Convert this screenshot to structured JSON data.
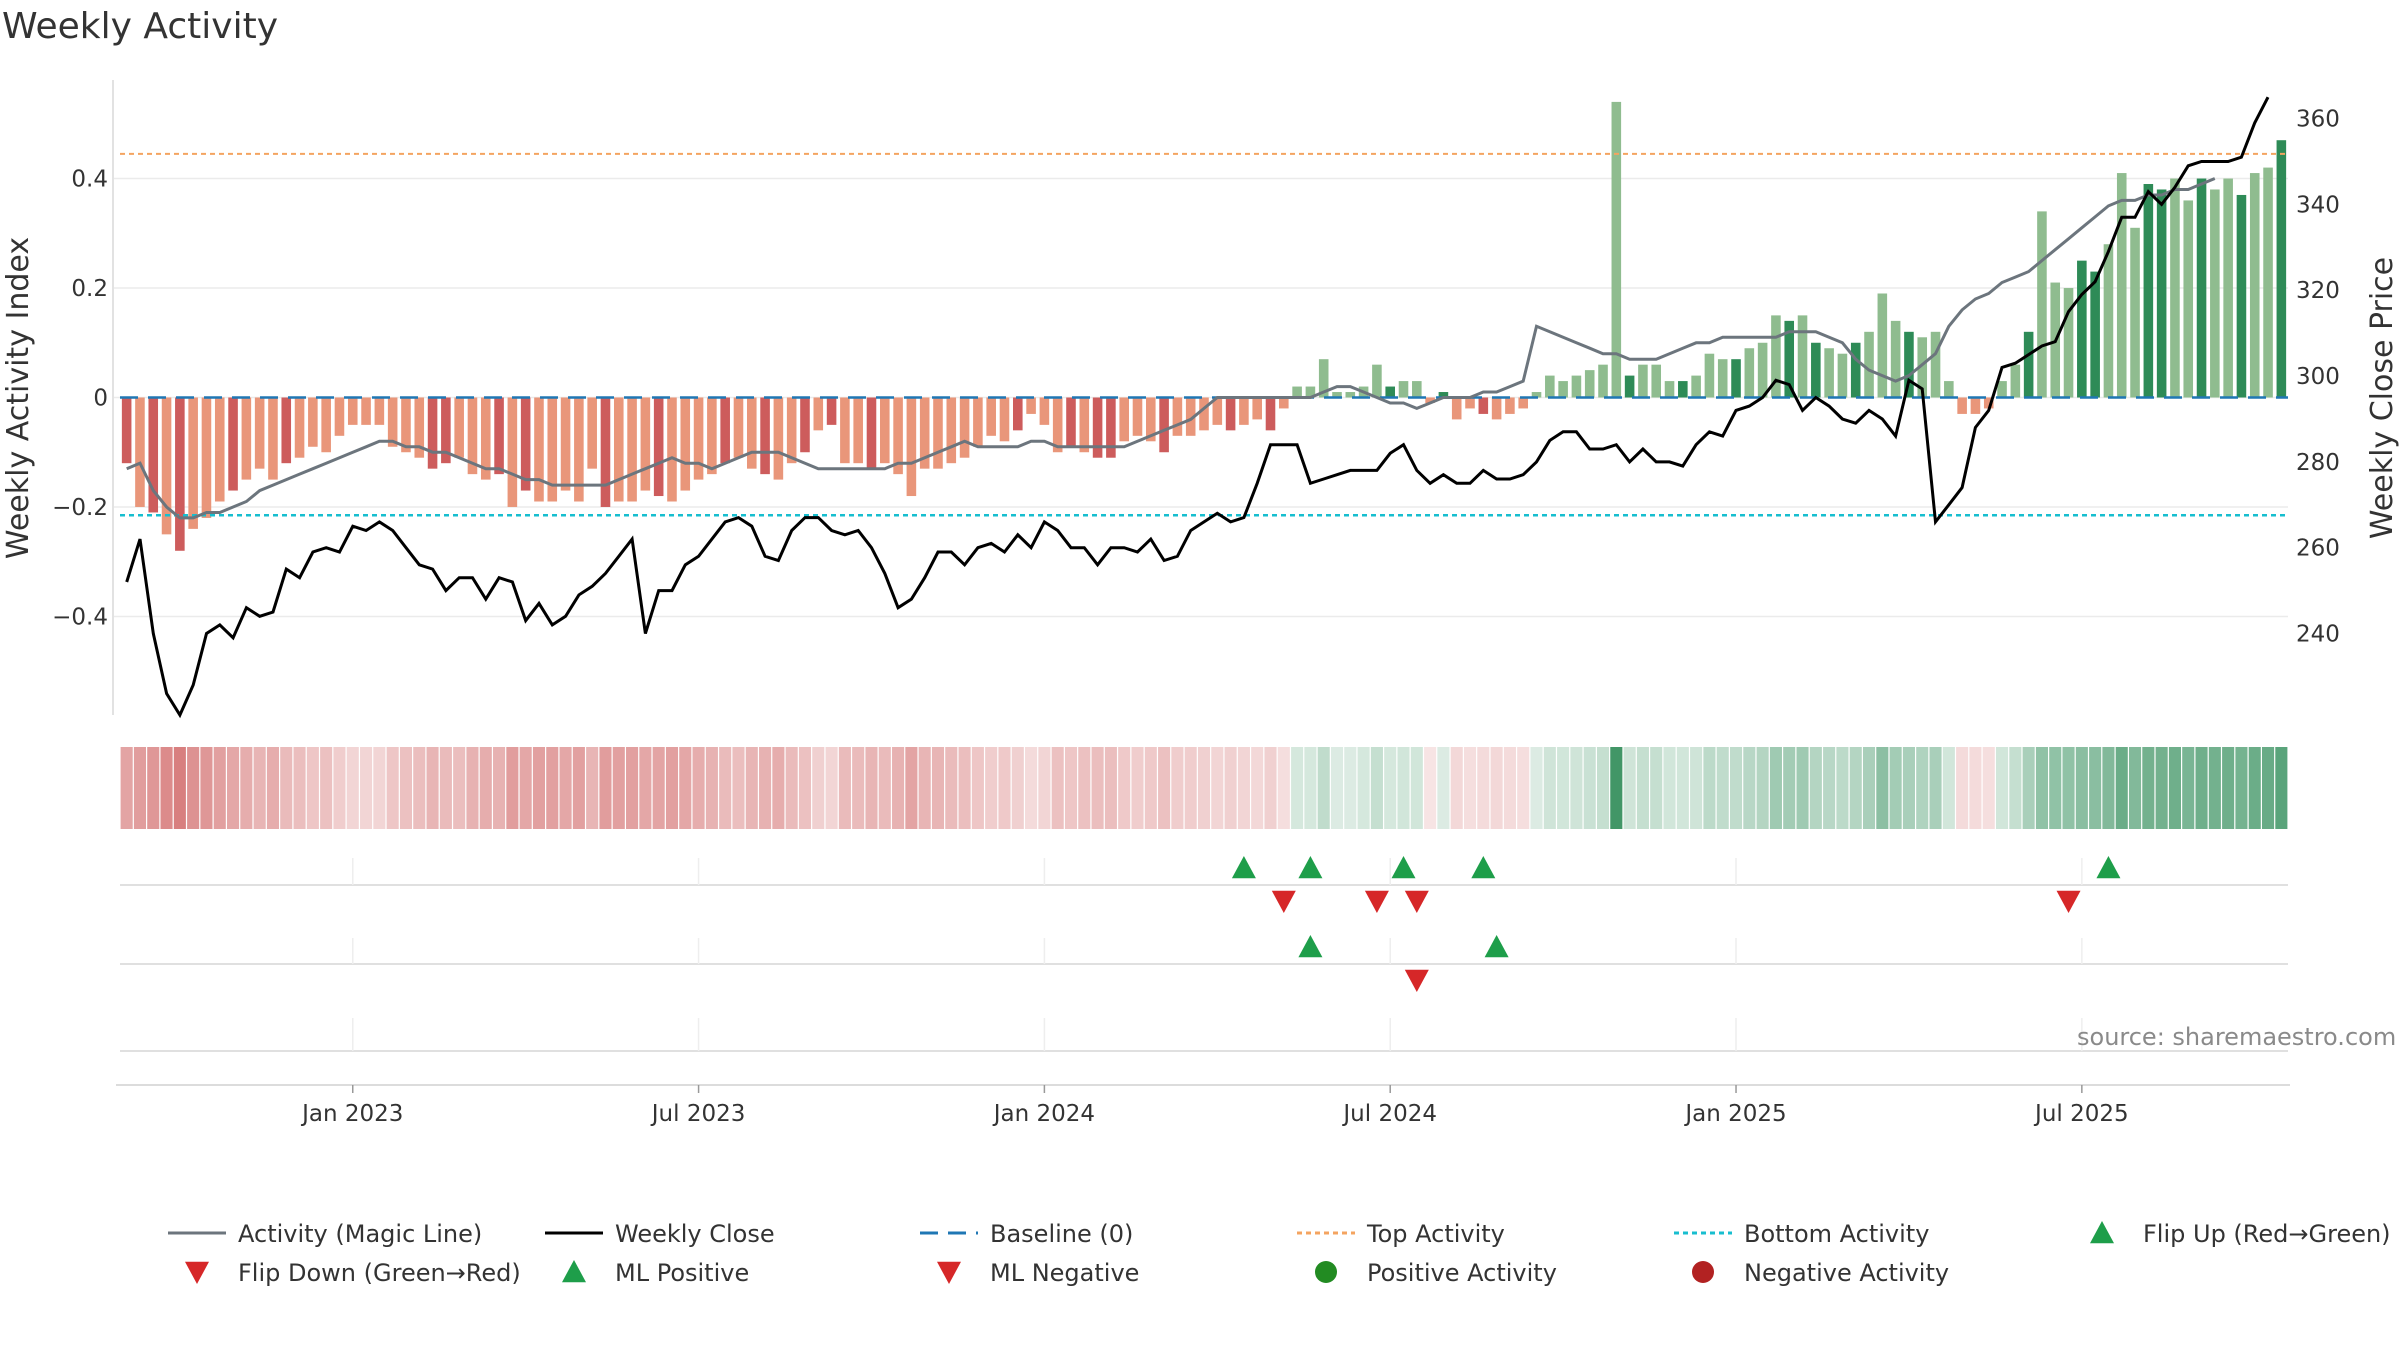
{
  "chart_data": {
    "type": "bar",
    "title": "Weekly Activity",
    "source": "source: sharemaestro.com",
    "y_left_label": "Weekly Activity Index",
    "y_right_label": "Weekly Close Price",
    "y_left_ticks": [
      {
        "v": 0.4,
        "label": "0.4"
      },
      {
        "v": 0.2,
        "label": "0.2"
      },
      {
        "v": 0,
        "label": "0"
      },
      {
        "v": -0.2,
        "label": "−0.2"
      },
      {
        "v": -0.4,
        "label": "−0.4"
      }
    ],
    "y_right_ticks": [
      360,
      340,
      320,
      300,
      280,
      260,
      240
    ],
    "y_left_range": [
      -0.58,
      0.58
    ],
    "y_right_range": [
      221,
      369
    ],
    "x_ticks": [
      {
        "w": 17,
        "label": "Jan 2023"
      },
      {
        "w": 43,
        "label": "Jul 2023"
      },
      {
        "w": 69,
        "label": "Jan 2024"
      },
      {
        "w": 95,
        "label": "Jul 2024"
      },
      {
        "w": 121,
        "label": "Jan 2025"
      },
      {
        "w": 147,
        "label": "Jul 2025"
      }
    ],
    "top_activity": 0.445,
    "bottom_activity": -0.215,
    "baseline": 0,
    "colors": {
      "strong_neg": "#cd5c5c",
      "weak_neg": "#e9967a",
      "strong_pos": "#2e8b57",
      "weak_pos": "#8fbc8f",
      "magic_line": "#6c757d",
      "close_line": "#000000",
      "baseline": "#1f77b4",
      "top_line": "#f4a460",
      "bottom_line": "#17becf",
      "marker_up": "#1e9e4a",
      "marker_down": "#d62728",
      "pos_dot": "#228b22",
      "neg_dot": "#b22222"
    },
    "weekly_activity": [
      -0.12,
      -0.2,
      -0.21,
      -0.25,
      -0.28,
      -0.24,
      -0.22,
      -0.19,
      -0.17,
      -0.15,
      -0.13,
      -0.15,
      -0.12,
      -0.11,
      -0.09,
      -0.1,
      -0.07,
      -0.05,
      -0.05,
      -0.05,
      -0.09,
      -0.1,
      -0.11,
      -0.13,
      -0.12,
      -0.11,
      -0.14,
      -0.15,
      -0.14,
      -0.2,
      -0.17,
      -0.19,
      -0.19,
      -0.17,
      -0.19,
      -0.13,
      -0.2,
      -0.19,
      -0.19,
      -0.17,
      -0.18,
      -0.19,
      -0.17,
      -0.15,
      -0.14,
      -0.12,
      -0.11,
      -0.13,
      -0.14,
      -0.15,
      -0.12,
      -0.1,
      -0.06,
      -0.05,
      -0.12,
      -0.12,
      -0.13,
      -0.12,
      -0.14,
      -0.18,
      -0.13,
      -0.13,
      -0.12,
      -0.11,
      -0.09,
      -0.07,
      -0.08,
      -0.06,
      -0.03,
      -0.05,
      -0.1,
      -0.09,
      -0.1,
      -0.11,
      -0.11,
      -0.08,
      -0.07,
      -0.08,
      -0.1,
      -0.07,
      -0.07,
      -0.06,
      -0.05,
      -0.06,
      -0.05,
      -0.04,
      -0.06,
      -0.02,
      0.02,
      0.02,
      0.07,
      0.01,
      0.01,
      0.02,
      0.06,
      0.02,
      0.03,
      0.03,
      -0.01,
      0.01,
      -0.04,
      -0.02,
      -0.03,
      -0.04,
      -0.03,
      -0.02,
      0.01,
      0.04,
      0.03,
      0.04,
      0.05,
      0.06,
      0.54,
      0.04,
      0.06,
      0.06,
      0.03,
      0.03,
      0.04,
      0.08,
      0.07,
      0.07,
      0.09,
      0.1,
      0.15,
      0.14,
      0.15,
      0.1,
      0.09,
      0.08,
      0.1,
      0.12,
      0.19,
      0.14,
      0.12,
      0.11,
      0.12,
      0.03,
      -0.03,
      -0.03,
      -0.02,
      0.03,
      0.06,
      0.12,
      0.34,
      0.21,
      0.2,
      0.25,
      0.23,
      0.28,
      0.41,
      0.31,
      0.39,
      0.38,
      0.4,
      0.36,
      0.4,
      0.38,
      0.4,
      0.37,
      0.41,
      0.42,
      0.47
    ],
    "strong_weeks": [
      0,
      2,
      4,
      8,
      12,
      23,
      24,
      28,
      30,
      36,
      40,
      45,
      48,
      51,
      53,
      56,
      67,
      71,
      73,
      74,
      78,
      83,
      86,
      95,
      99,
      102,
      113,
      117,
      121,
      125,
      127,
      130,
      134,
      143,
      147,
      148,
      152,
      153,
      156,
      159,
      162
    ],
    "magic_line": [
      -0.13,
      -0.12,
      -0.17,
      -0.2,
      -0.22,
      -0.22,
      -0.21,
      -0.21,
      -0.2,
      -0.19,
      -0.17,
      -0.16,
      -0.15,
      -0.14,
      -0.13,
      -0.12,
      -0.11,
      -0.1,
      -0.09,
      -0.08,
      -0.08,
      -0.09,
      -0.09,
      -0.1,
      -0.1,
      -0.11,
      -0.12,
      -0.13,
      -0.13,
      -0.14,
      -0.15,
      -0.15,
      -0.16,
      -0.16,
      -0.16,
      -0.16,
      -0.16,
      -0.15,
      -0.14,
      -0.13,
      -0.12,
      -0.11,
      -0.12,
      -0.12,
      -0.13,
      -0.12,
      -0.11,
      -0.1,
      -0.1,
      -0.1,
      -0.11,
      -0.12,
      -0.13,
      -0.13,
      -0.13,
      -0.13,
      -0.13,
      -0.13,
      -0.12,
      -0.12,
      -0.11,
      -0.1,
      -0.09,
      -0.08,
      -0.09,
      -0.09,
      -0.09,
      -0.09,
      -0.08,
      -0.08,
      -0.09,
      -0.09,
      -0.09,
      -0.09,
      -0.09,
      -0.09,
      -0.08,
      -0.07,
      -0.06,
      -0.05,
      -0.04,
      -0.02,
      0.0,
      0.0,
      0.0,
      0.0,
      0.0,
      0.0,
      0.0,
      0.0,
      0.01,
      0.02,
      0.02,
      0.01,
      0.0,
      -0.01,
      -0.01,
      -0.02,
      -0.01,
      0.0,
      0.0,
      0.0,
      0.01,
      0.01,
      0.02,
      0.03,
      0.13,
      0.12,
      0.11,
      0.1,
      0.09,
      0.08,
      0.08,
      0.07,
      0.07,
      0.07,
      0.08,
      0.09,
      0.1,
      0.1,
      0.11,
      0.11,
      0.11,
      0.11,
      0.11,
      0.12,
      0.12,
      0.12,
      0.11,
      0.1,
      0.07,
      0.05,
      0.04,
      0.03,
      0.04,
      0.06,
      0.08,
      0.13,
      0.16,
      0.18,
      0.19,
      0.21,
      0.22,
      0.23,
      0.25,
      0.27,
      0.29,
      0.31,
      0.33,
      0.35,
      0.36,
      0.36,
      0.37,
      0.37,
      0.38,
      0.38,
      0.39,
      0.4
    ],
    "weekly_close": [
      252,
      262,
      240,
      226,
      221,
      228,
      240,
      242,
      239,
      246,
      244,
      245,
      255,
      253,
      259,
      260,
      259,
      265,
      264,
      266,
      264,
      260,
      256,
      255,
      250,
      253,
      253,
      248,
      253,
      252,
      243,
      247,
      242,
      244,
      249,
      251,
      254,
      258,
      262,
      240,
      250,
      250,
      256,
      258,
      262,
      266,
      267,
      265,
      258,
      257,
      264,
      267,
      267,
      264,
      263,
      264,
      260,
      254,
      246,
      248,
      253,
      259,
      259,
      256,
      260,
      261,
      259,
      263,
      260,
      266,
      264,
      260,
      260,
      256,
      260,
      260,
      259,
      262,
      257,
      258,
      264,
      266,
      268,
      266,
      267,
      275,
      284,
      284,
      284,
      275,
      276,
      277,
      278,
      278,
      278,
      282,
      284,
      278,
      275,
      277,
      275,
      275,
      278,
      276,
      276,
      277,
      280,
      285,
      287,
      287,
      283,
      283,
      284,
      280,
      283,
      280,
      280,
      279,
      284,
      287,
      286,
      292,
      293,
      295,
      299,
      298,
      292,
      295,
      293,
      290,
      289,
      292,
      290,
      286,
      299,
      297,
      266,
      270,
      274,
      288,
      292,
      302,
      303,
      305,
      307,
      308,
      315,
      319,
      322,
      329,
      337,
      337,
      343,
      340,
      344,
      349,
      350,
      350,
      350,
      351,
      359,
      365
    ],
    "heatmap_strength": [
      0.55,
      0.6,
      0.65,
      0.75,
      0.85,
      0.7,
      0.65,
      0.58,
      0.52,
      0.47,
      0.4,
      0.47,
      0.36,
      0.33,
      0.27,
      0.3,
      0.21,
      0.15,
      0.15,
      0.15,
      0.27,
      0.3,
      0.33,
      0.4,
      0.36,
      0.33,
      0.43,
      0.47,
      0.43,
      0.6,
      0.52,
      0.58,
      0.58,
      0.52,
      0.58,
      0.4,
      0.6,
      0.58,
      0.58,
      0.52,
      0.55,
      0.58,
      0.52,
      0.47,
      0.43,
      0.36,
      0.33,
      0.4,
      0.43,
      0.47,
      0.36,
      0.3,
      0.18,
      0.15,
      0.36,
      0.36,
      0.4,
      0.36,
      0.43,
      0.55,
      0.4,
      0.4,
      0.36,
      0.33,
      0.27,
      0.21,
      0.24,
      0.18,
      0.09,
      0.15,
      0.3,
      0.27,
      0.3,
      0.33,
      0.33,
      0.24,
      0.21,
      0.24,
      0.3,
      0.21,
      0.21,
      0.18,
      0.15,
      0.18,
      0.15,
      0.12,
      0.18,
      0.06,
      0.06,
      0.06,
      0.2,
      0.03,
      0.03,
      0.06,
      0.17,
      0.06,
      0.09,
      0.09,
      0.03,
      0.03,
      0.12,
      0.06,
      0.09,
      0.12,
      0.09,
      0.06,
      0.03,
      0.11,
      0.09,
      0.11,
      0.14,
      0.17,
      1.0,
      0.11,
      0.17,
      0.17,
      0.09,
      0.09,
      0.11,
      0.22,
      0.2,
      0.2,
      0.25,
      0.28,
      0.42,
      0.39,
      0.42,
      0.28,
      0.25,
      0.22,
      0.28,
      0.34,
      0.53,
      0.39,
      0.34,
      0.31,
      0.34,
      0.09,
      0.09,
      0.09,
      0.06,
      0.09,
      0.17,
      0.34,
      0.5,
      0.5,
      0.5,
      0.55,
      0.55,
      0.6,
      0.75,
      0.6,
      0.7,
      0.7,
      0.72,
      0.65,
      0.72,
      0.7,
      0.72,
      0.68,
      0.75,
      0.76,
      0.85
    ],
    "flip_events_up": [
      84,
      89,
      96,
      102,
      149
    ],
    "flip_events_down": [
      87,
      94,
      97,
      146
    ],
    "ml_events_up": [
      89,
      103
    ],
    "ml_events_down": [
      97
    ],
    "legend": [
      {
        "label": "Activity (Magic Line)",
        "kind": "line",
        "color": "#6c757d",
        "dash": ""
      },
      {
        "label": "Weekly Close",
        "kind": "line",
        "color": "#000000",
        "dash": ""
      },
      {
        "label": "Baseline (0)",
        "kind": "line",
        "color": "#1f77b4",
        "dash": "18 10"
      },
      {
        "label": "Top Activity",
        "kind": "line",
        "color": "#f4a460",
        "dash": "5 4"
      },
      {
        "label": "Bottom Activity",
        "kind": "line",
        "color": "#17becf",
        "dash": "5 4"
      },
      {
        "label": "Flip Up (Red→Green)",
        "kind": "tri-up",
        "color": "#1e9e4a"
      },
      {
        "label": "Flip Down (Green→Red)",
        "kind": "tri-down",
        "color": "#d62728"
      },
      {
        "label": "ML Positive",
        "kind": "tri-up",
        "color": "#1e9e4a"
      },
      {
        "label": "ML Negative",
        "kind": "tri-down",
        "color": "#d62728"
      },
      {
        "label": "Positive Activity",
        "kind": "dot",
        "color": "#228b22"
      },
      {
        "label": "Negative Activity",
        "kind": "dot",
        "color": "#b22222"
      }
    ]
  }
}
